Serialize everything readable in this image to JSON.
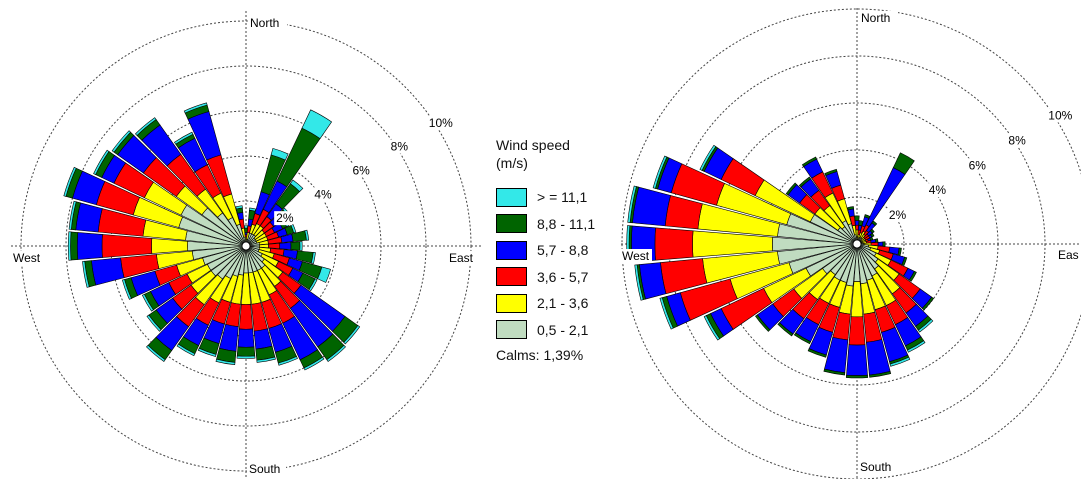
{
  "legend": {
    "title_line1": "Wind speed",
    "title_line2": "(m/s)",
    "items": [
      {
        "label": "> = 11,1",
        "color": "#33e8e8"
      },
      {
        "label": "8,8 - 11,1",
        "color": "#006400"
      },
      {
        "label": "5,7 - 8,8",
        "color": "#0000ff"
      },
      {
        "label": "3,6 - 5,7",
        "color": "#ff0000"
      },
      {
        "label": "2,1 - 3,6",
        "color": "#ffff00"
      },
      {
        "label": "0,5 - 2,1",
        "color": "#c0dcc0"
      }
    ],
    "calms": "Calms: 1,39%"
  },
  "chart_data": [
    {
      "type": "wind-rose",
      "directions": 36,
      "sector_step_deg": 10,
      "compass_labels": {
        "north": "North",
        "east": "East",
        "south": "South",
        "west": "West"
      },
      "ring_labels": [
        "2%",
        "4%",
        "6%",
        "8%",
        "10%"
      ],
      "rings_percent": [
        2,
        4,
        6,
        8,
        10
      ],
      "speed_bins": [
        "0,5 - 2,1",
        "2,1 - 3,6",
        "3,6 - 5,7",
        "5,7 - 8,8",
        "8,8 - 11,1",
        "> = 11,1"
      ],
      "sectors": [
        {
          "dir": 0,
          "cum": [
            0.2,
            0.4,
            0.5,
            0.6,
            0.8,
            0.9
          ]
        },
        {
          "dir": 10,
          "cum": [
            0.3,
            0.6,
            0.9,
            1.2,
            1.6,
            1.7
          ]
        },
        {
          "dir": 20,
          "cum": [
            0.6,
            1.0,
            1.5,
            2.5,
            4.2,
            4.5
          ]
        },
        {
          "dir": 30,
          "cum": [
            0.6,
            1.1,
            1.8,
            3.2,
            5.8,
            6.7
          ]
        },
        {
          "dir": 40,
          "cum": [
            0.6,
            1.1,
            1.6,
            2.3,
            3.4,
            3.6
          ]
        },
        {
          "dir": 50,
          "cum": [
            0.5,
            1.0,
            1.5,
            2.0,
            2.3,
            2.4
          ]
        },
        {
          "dir": 60,
          "cum": [
            0.5,
            1.0,
            1.4,
            1.8,
            2.0,
            2.1
          ]
        },
        {
          "dir": 70,
          "cum": [
            0.5,
            1.0,
            1.5,
            1.9,
            2.2,
            2.3
          ]
        },
        {
          "dir": 80,
          "cum": [
            0.6,
            1.0,
            1.6,
            2.1,
            2.7,
            2.8
          ]
        },
        {
          "dir": 90,
          "cum": [
            0.6,
            1.0,
            1.5,
            2.0,
            2.4,
            2.5
          ]
        },
        {
          "dir": 100,
          "cum": [
            0.6,
            1.1,
            1.7,
            2.3,
            3.0,
            3.1
          ]
        },
        {
          "dir": 110,
          "cum": [
            0.6,
            1.3,
            2.0,
            2.6,
            3.5,
            3.9
          ]
        },
        {
          "dir": 120,
          "cum": [
            0.8,
            1.6,
            2.3,
            2.8,
            3.4,
            3.5
          ]
        },
        {
          "dir": 130,
          "cum": [
            1.0,
            2.0,
            3.0,
            5.4,
            6.1,
            6.2
          ]
        },
        {
          "dir": 140,
          "cum": [
            1.2,
            2.2,
            3.4,
            5.5,
            6.2,
            6.3
          ]
        },
        {
          "dir": 150,
          "cum": [
            1.2,
            2.4,
            3.8,
            5.6,
            6.0,
            6.1
          ]
        },
        {
          "dir": 160,
          "cum": [
            1.2,
            2.6,
            3.8,
            4.9,
            5.4,
            5.5
          ]
        },
        {
          "dir": 170,
          "cum": [
            1.2,
            2.6,
            3.8,
            4.6,
            5.1,
            5.2
          ]
        },
        {
          "dir": 180,
          "cum": [
            1.2,
            2.6,
            3.7,
            4.5,
            4.9,
            5.0
          ]
        },
        {
          "dir": 190,
          "cum": [
            1.3,
            2.6,
            3.6,
            4.7,
            5.2,
            5.3
          ]
        },
        {
          "dir": 200,
          "cum": [
            1.4,
            2.6,
            3.6,
            4.5,
            5.0,
            5.1
          ]
        },
        {
          "dir": 210,
          "cum": [
            1.6,
            2.8,
            3.9,
            4.9,
            5.3,
            5.4
          ]
        },
        {
          "dir": 220,
          "cum": [
            1.8,
            3.2,
            4.4,
            5.7,
            6.2,
            6.3
          ]
        },
        {
          "dir": 230,
          "cum": [
            1.9,
            3.0,
            4.0,
            4.9,
            5.3,
            5.4
          ]
        },
        {
          "dir": 240,
          "cum": [
            1.9,
            2.9,
            3.8,
            4.7,
            5.0,
            5.1
          ]
        },
        {
          "dir": 250,
          "cum": [
            2.0,
            3.2,
            4.2,
            5.3,
            5.6,
            5.7
          ]
        },
        {
          "dir": 260,
          "cum": [
            2.4,
            4.0,
            5.6,
            6.9,
            7.2,
            7.3
          ]
        },
        {
          "dir": 270,
          "cum": [
            2.6,
            4.2,
            6.4,
            7.5,
            7.8,
            7.9
          ]
        },
        {
          "dir": 280,
          "cum": [
            2.7,
            4.6,
            6.6,
            7.6,
            7.8,
            7.9
          ]
        },
        {
          "dir": 290,
          "cum": [
            3.1,
            5.2,
            6.9,
            8.0,
            8.3,
            8.4
          ]
        },
        {
          "dir": 300,
          "cum": [
            3.2,
            5.0,
            6.5,
            7.1,
            7.4,
            7.5
          ]
        },
        {
          "dir": 310,
          "cum": [
            2.4,
            3.8,
            5.6,
            7.0,
            7.2,
            7.3
          ]
        },
        {
          "dir": 320,
          "cum": [
            1.8,
            3.1,
            5.0,
            6.6,
            6.9,
            7.0
          ]
        },
        {
          "dir": 330,
          "cum": [
            1.4,
            2.6,
            4.0,
            5.3,
            5.5,
            5.6
          ]
        },
        {
          "dir": 340,
          "cum": [
            1.0,
            2.4,
            4.2,
            6.2,
            6.5,
            6.6
          ]
        },
        {
          "dir": 350,
          "cum": [
            0.4,
            0.8,
            1.2,
            1.5,
            1.7,
            1.8
          ]
        }
      ]
    },
    {
      "type": "wind-rose",
      "directions": 36,
      "sector_step_deg": 10,
      "compass_labels": {
        "north": "North",
        "east": "Eas",
        "south": "South",
        "west": "West"
      },
      "ring_labels": [
        "2%",
        "4%",
        "6%",
        "8%",
        "10%"
      ],
      "rings_percent": [
        2,
        4,
        6,
        8,
        10
      ],
      "speed_bins": [
        "0,5 - 2,1",
        "2,1 - 3,6",
        "3,6 - 5,7",
        "5,7 - 8,8",
        "8,8 - 11,1",
        "> = 11,1"
      ],
      "sectors": [
        {
          "dir": 0,
          "cum": [
            0.3,
            0.6,
            0.8,
            1.0,
            1.2,
            1.2
          ]
        },
        {
          "dir": 10,
          "cum": [
            0.2,
            0.4,
            0.6,
            0.8,
            1.0,
            1.0
          ]
        },
        {
          "dir": 20,
          "cum": [
            0.3,
            0.5,
            0.8,
            1.2,
            1.3,
            1.3
          ]
        },
        {
          "dir": 30,
          "cum": [
            0.3,
            0.6,
            0.9,
            3.6,
            4.3,
            4.3
          ]
        },
        {
          "dir": 40,
          "cum": [
            0.3,
            0.5,
            0.7,
            1.1,
            1.2,
            1.2
          ]
        },
        {
          "dir": 50,
          "cum": [
            0.2,
            0.4,
            0.6,
            0.8,
            0.9,
            0.9
          ]
        },
        {
          "dir": 60,
          "cum": [
            0.2,
            0.4,
            0.6,
            0.7,
            0.8,
            0.8
          ]
        },
        {
          "dir": 70,
          "cum": [
            0.2,
            0.4,
            0.5,
            0.6,
            0.7,
            0.7
          ]
        },
        {
          "dir": 80,
          "cum": [
            0.2,
            0.4,
            0.6,
            0.8,
            0.9,
            0.9
          ]
        },
        {
          "dir": 90,
          "cum": [
            0.3,
            0.6,
            0.9,
            1.1,
            1.2,
            1.2
          ]
        },
        {
          "dir": 100,
          "cum": [
            0.5,
            0.9,
            1.4,
            1.8,
            1.9,
            1.9
          ]
        },
        {
          "dir": 110,
          "cum": [
            0.6,
            1.0,
            1.6,
            2.1,
            2.2,
            2.2
          ]
        },
        {
          "dir": 120,
          "cum": [
            0.9,
            1.6,
            2.4,
            2.7,
            2.8,
            2.8
          ]
        },
        {
          "dir": 130,
          "cum": [
            1.1,
            2.2,
            3.3,
            3.9,
            4.0,
            4.0
          ]
        },
        {
          "dir": 140,
          "cum": [
            1.3,
            2.6,
            3.6,
            4.3,
            4.5,
            4.6
          ]
        },
        {
          "dir": 150,
          "cum": [
            1.5,
            2.9,
            3.8,
            4.8,
            5.0,
            5.1
          ]
        },
        {
          "dir": 160,
          "cum": [
            1.6,
            2.9,
            3.9,
            5.2,
            5.3,
            5.4
          ]
        },
        {
          "dir": 170,
          "cum": [
            1.7,
            3.0,
            4.2,
            5.6,
            5.7,
            5.7
          ]
        },
        {
          "dir": 180,
          "cum": [
            1.6,
            3.1,
            4.3,
            5.6,
            5.7,
            5.7
          ]
        },
        {
          "dir": 190,
          "cum": [
            1.8,
            3.0,
            4.1,
            5.5,
            5.6,
            5.6
          ]
        },
        {
          "dir": 200,
          "cum": [
            1.7,
            2.8,
            3.9,
            4.9,
            5.0,
            5.0
          ]
        },
        {
          "dir": 210,
          "cum": [
            1.7,
            2.8,
            3.8,
            4.6,
            4.7,
            4.7
          ]
        },
        {
          "dir": 220,
          "cum": [
            1.6,
            2.9,
            3.9,
            4.7,
            4.8,
            4.8
          ]
        },
        {
          "dir": 230,
          "cum": [
            1.8,
            3.3,
            4.4,
            5.2,
            5.3,
            5.3
          ]
        },
        {
          "dir": 240,
          "cum": [
            2.4,
            4.4,
            6.4,
            6.9,
            7.1,
            7.2
          ]
        },
        {
          "dir": 250,
          "cum": [
            3.0,
            5.6,
            7.8,
            8.4,
            8.6,
            8.7
          ]
        },
        {
          "dir": 260,
          "cum": [
            3.4,
            6.6,
            8.4,
            9.3,
            9.4,
            9.5
          ]
        },
        {
          "dir": 270,
          "cum": [
            3.6,
            7.0,
            8.6,
            9.6,
            9.7,
            9.8
          ]
        },
        {
          "dir": 280,
          "cum": [
            3.4,
            6.8,
            8.2,
            9.6,
            9.7,
            9.8
          ]
        },
        {
          "dir": 290,
          "cum": [
            3.1,
            6.2,
            8.2,
            8.8,
            8.9,
            9.0
          ]
        },
        {
          "dir": 300,
          "cum": [
            2.2,
            4.8,
            6.4,
            7.2,
            7.3,
            7.4
          ]
        },
        {
          "dir": 310,
          "cum": [
            1.0,
            2.2,
            3.0,
            3.6,
            3.7,
            3.7
          ]
        },
        {
          "dir": 320,
          "cum": [
            0.9,
            2.0,
            2.8,
            3.4,
            3.5,
            3.5
          ]
        },
        {
          "dir": 330,
          "cum": [
            1.1,
            2.4,
            3.4,
            4.0,
            4.1,
            4.1
          ]
        },
        {
          "dir": 340,
          "cum": [
            0.9,
            2.0,
            2.6,
            3.2,
            3.3,
            3.3
          ]
        },
        {
          "dir": 350,
          "cum": [
            0.4,
            0.8,
            1.2,
            1.5,
            1.6,
            1.6
          ]
        }
      ]
    }
  ]
}
